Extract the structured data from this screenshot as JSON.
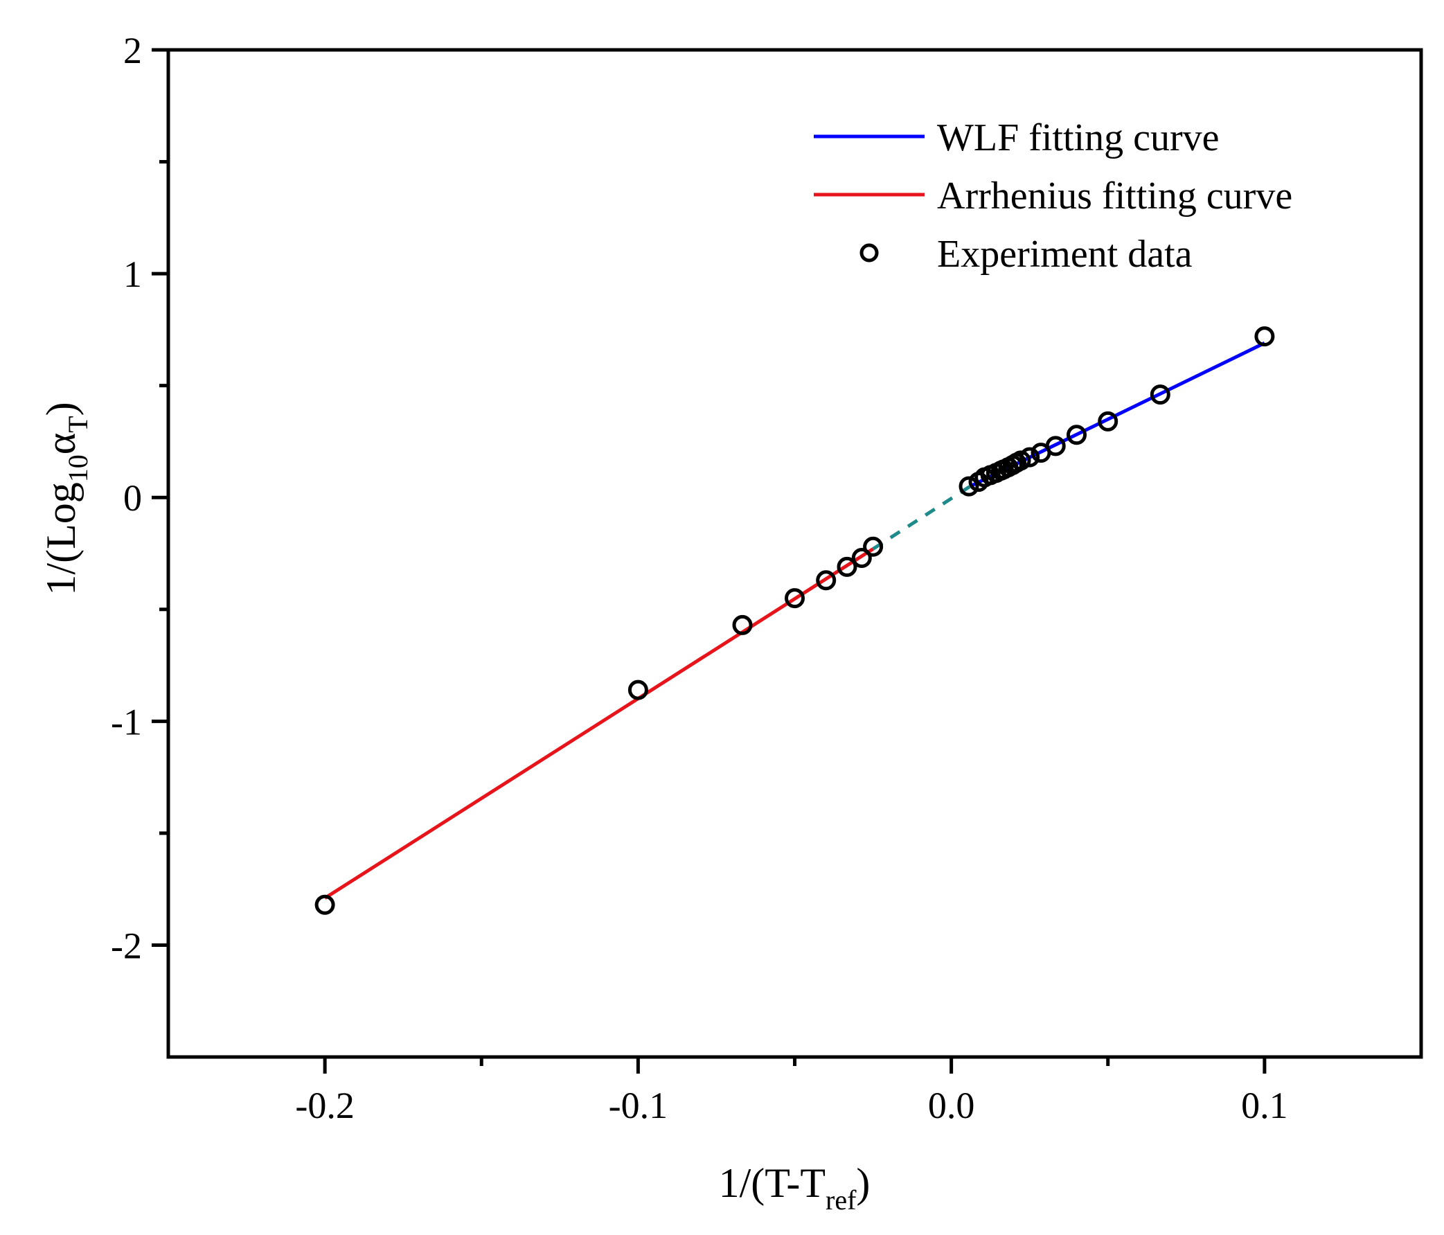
{
  "chart_data": {
    "type": "scatter",
    "title": "",
    "xlabel": {
      "main": "1/(T-T",
      "sub": "ref",
      "close": ")"
    },
    "ylabel": {
      "main": "1/(Log",
      "sub": "10",
      "greek": "α",
      "sub2": "T",
      "close": ")"
    },
    "xlim": [
      -0.25,
      0.15
    ],
    "ylim": [
      -2.5,
      2
    ],
    "x_ticks": [
      {
        "value": -0.2,
        "label": "-0.2"
      },
      {
        "value": -0.1,
        "label": "-0.1"
      },
      {
        "value": 0.0,
        "label": "0.0"
      },
      {
        "value": 0.1,
        "label": "0.1"
      }
    ],
    "x_minor_ticks": [
      -0.15,
      -0.05,
      0.05
    ],
    "y_ticks": [
      {
        "value": -2,
        "label": "-2"
      },
      {
        "value": -1,
        "label": "-1"
      },
      {
        "value": 0,
        "label": "0"
      },
      {
        "value": 1,
        "label": "1"
      },
      {
        "value": 2,
        "label": "2"
      }
    ],
    "y_minor_ticks": [
      -1.5,
      -0.5,
      0.5,
      1.5
    ],
    "legend_position": "top-right",
    "series": [
      {
        "name": "WLF fitting curve",
        "kind": "line",
        "color": "#0000ff",
        "x": [
          0.006,
          0.1
        ],
        "y": [
          0.05,
          0.69
        ]
      },
      {
        "name": "Arrhenius fitting curve",
        "kind": "line",
        "color": "#e8141b",
        "x": [
          -0.2,
          -0.025
        ],
        "y": [
          -1.79,
          -0.23
        ]
      },
      {
        "name": "extrapolation",
        "kind": "dashed-line",
        "color": "#1f8a8a",
        "in_legend": false,
        "x": [
          -0.025,
          0.006
        ],
        "y": [
          -0.23,
          0.05
        ]
      },
      {
        "name": "Experiment data",
        "kind": "points",
        "color": "#000000",
        "x": [
          -0.2,
          -0.1,
          -0.0667,
          -0.05,
          -0.04,
          -0.0333,
          -0.0286,
          -0.025,
          0.0056,
          0.0087,
          0.0106,
          0.0125,
          0.0143,
          0.0159,
          0.0167,
          0.0182,
          0.0196,
          0.0208,
          0.0222,
          0.025,
          0.0286,
          0.0333,
          0.04,
          0.05,
          0.0667,
          0.1
        ],
        "y": [
          -1.82,
          -0.86,
          -0.57,
          -0.45,
          -0.37,
          -0.31,
          -0.27,
          -0.22,
          0.05,
          0.07,
          0.09,
          0.1,
          0.11,
          0.12,
          0.125,
          0.135,
          0.145,
          0.155,
          0.165,
          0.18,
          0.2,
          0.23,
          0.28,
          0.34,
          0.46,
          0.72
        ]
      }
    ]
  }
}
